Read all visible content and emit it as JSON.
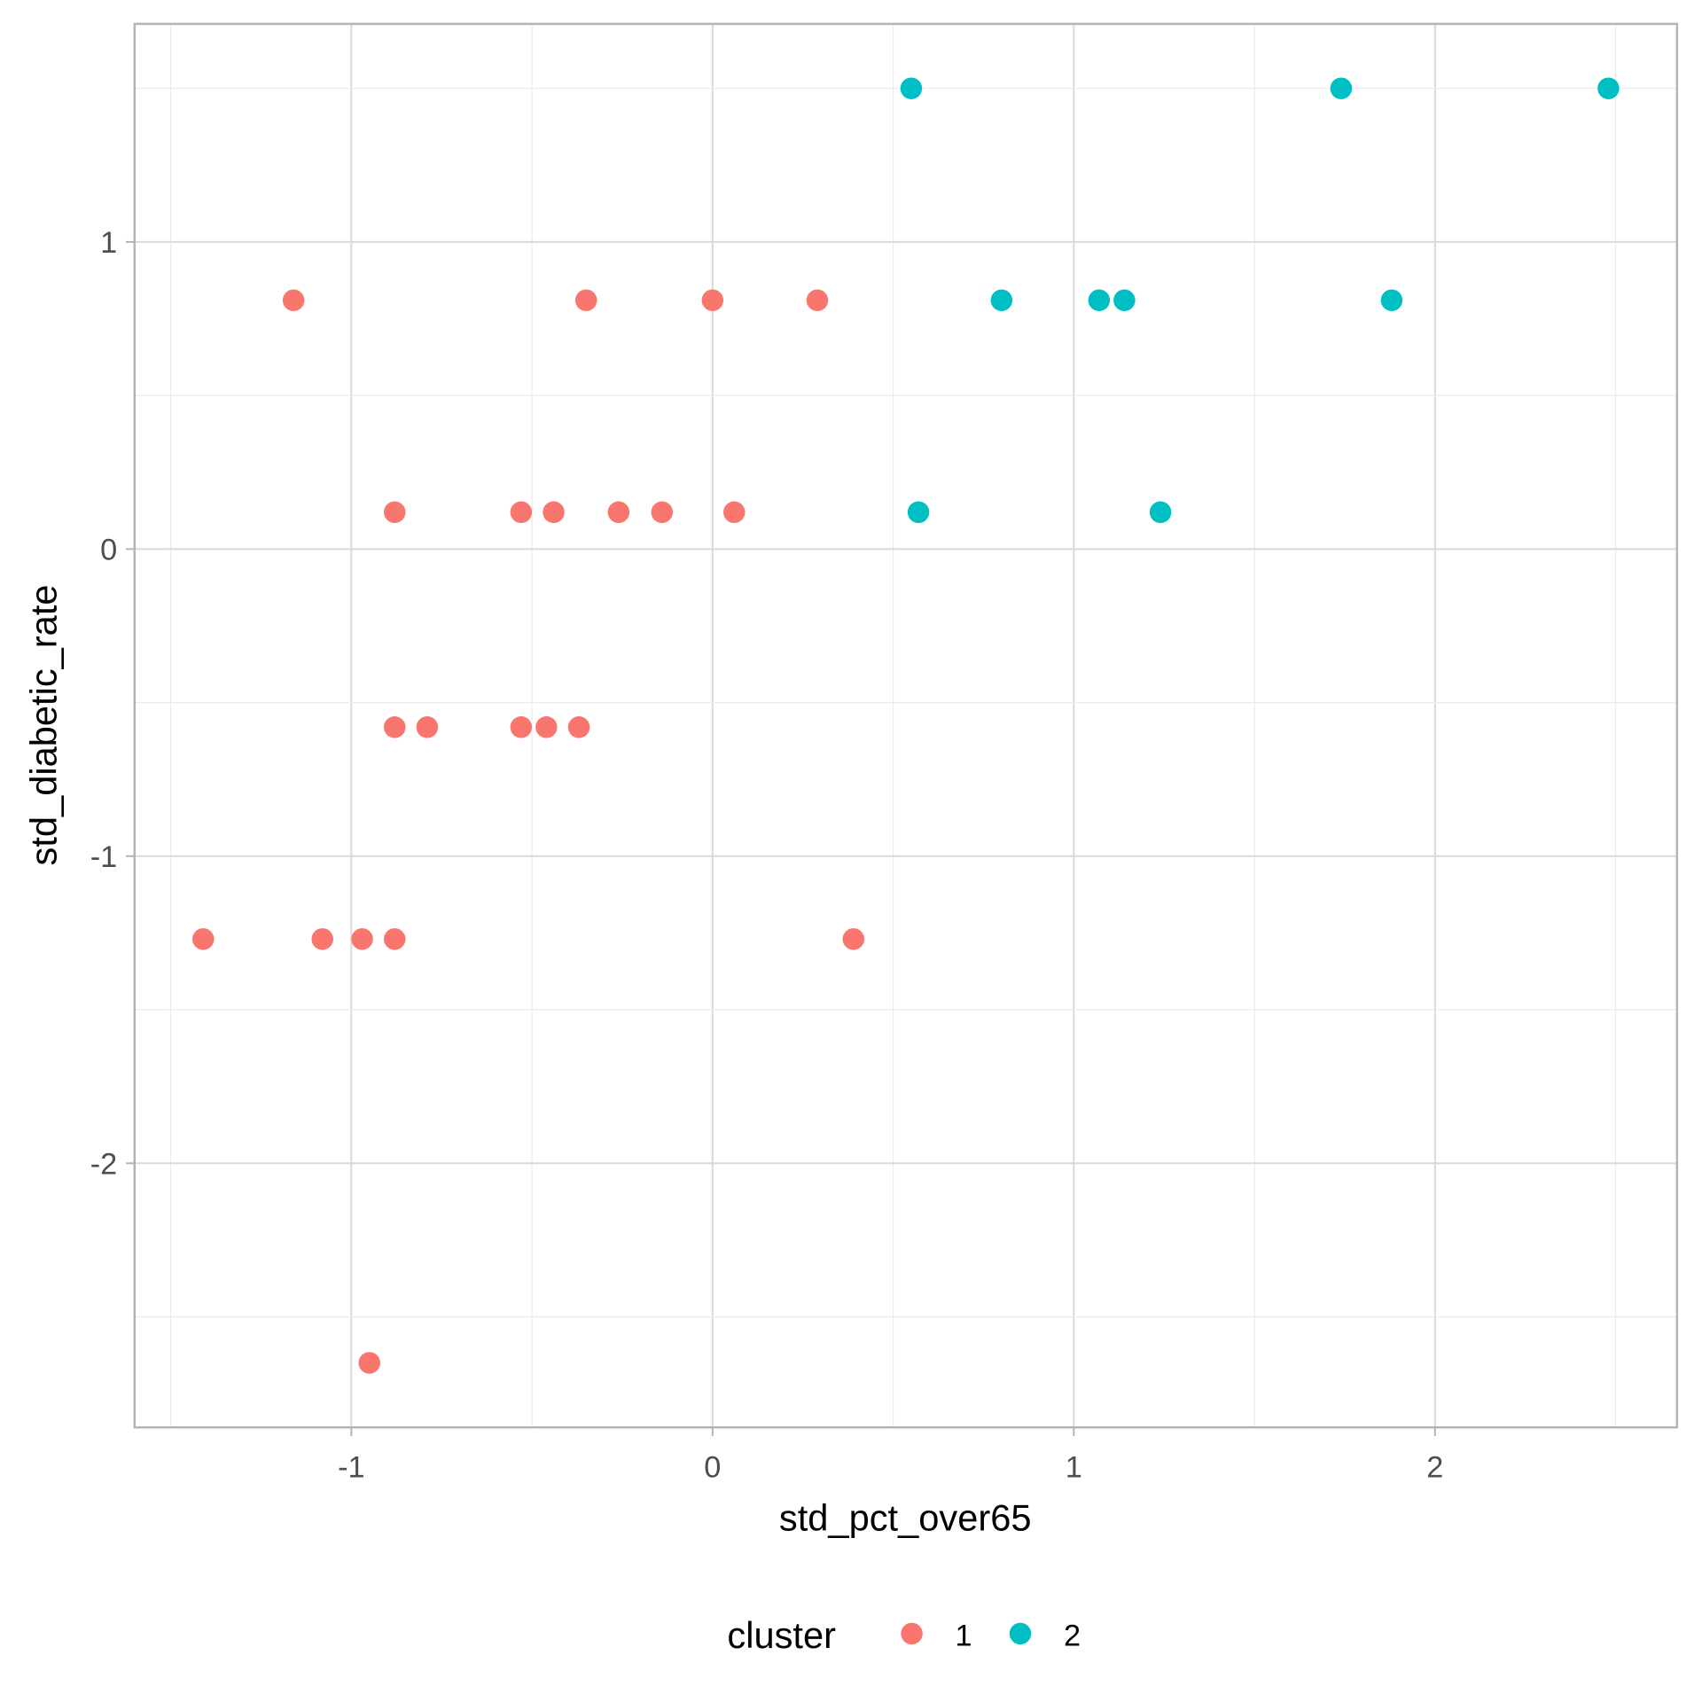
{
  "chart_data": {
    "type": "scatter",
    "title": "",
    "xlabel": "std_pct_over65",
    "ylabel": "std_diabetic_rate",
    "xlim": [
      -1.6,
      2.67
    ],
    "ylim": [
      -2.86,
      1.71
    ],
    "x_ticks": [
      "-1",
      "0",
      "1",
      "2"
    ],
    "y_ticks": [
      "-2",
      "-1",
      "0",
      "1"
    ],
    "grid": true,
    "legend": {
      "title": "cluster",
      "position": "bottom",
      "entries": [
        "1",
        "2"
      ]
    },
    "colors": {
      "1": "#F8766D",
      "2": "#00BFC4"
    },
    "series": [
      {
        "name": "1",
        "points": [
          [
            -1.16,
            0.81
          ],
          [
            -0.35,
            0.81
          ],
          [
            0.0,
            0.81
          ],
          [
            0.29,
            0.81
          ],
          [
            -0.88,
            0.12
          ],
          [
            -0.53,
            0.12
          ],
          [
            -0.44,
            0.12
          ],
          [
            -0.26,
            0.12
          ],
          [
            -0.14,
            0.12
          ],
          [
            0.06,
            0.12
          ],
          [
            -0.88,
            -0.58
          ],
          [
            -0.79,
            -0.58
          ],
          [
            -0.53,
            -0.58
          ],
          [
            -0.46,
            -0.58
          ],
          [
            -0.37,
            -0.58
          ],
          [
            -1.41,
            -1.27
          ],
          [
            -1.08,
            -1.27
          ],
          [
            -0.97,
            -1.27
          ],
          [
            -0.88,
            -1.27
          ],
          [
            0.39,
            -1.27
          ],
          [
            -0.95,
            -2.65
          ]
        ]
      },
      {
        "name": "2",
        "points": [
          [
            0.55,
            1.5
          ],
          [
            1.74,
            1.5
          ],
          [
            2.48,
            1.5
          ],
          [
            0.8,
            0.81
          ],
          [
            1.07,
            0.81
          ],
          [
            1.14,
            0.81
          ],
          [
            1.88,
            0.81
          ],
          [
            0.57,
            0.12
          ],
          [
            1.24,
            0.12
          ]
        ]
      }
    ]
  }
}
